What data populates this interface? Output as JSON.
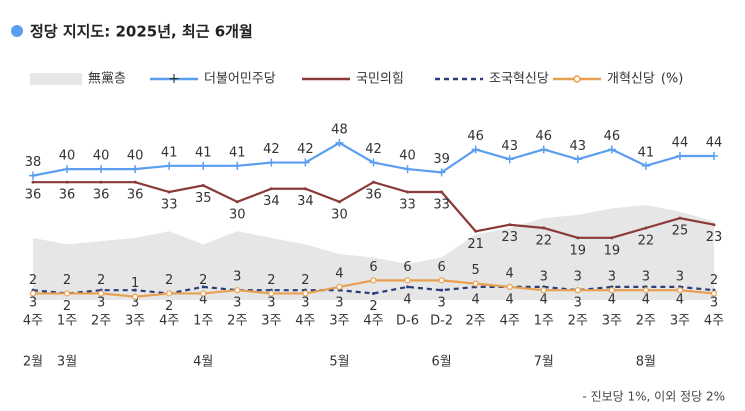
{
  "chart_data": {
    "type": "line",
    "title": "정당 지지도: 2025년, 최근 6개월",
    "unit": "(%)",
    "footnote": "- 진보당 1%, 이외 정당 2%",
    "categories": [
      "4주",
      "1주",
      "2주",
      "3주",
      "4주",
      "1주",
      "2주",
      "3주",
      "4주",
      "3주",
      "4주",
      "D-6",
      "D-2",
      "2주",
      "4주",
      "1주",
      "2주",
      "3주",
      "2주",
      "3주",
      "4주"
    ],
    "months": [
      "2월",
      "3월",
      null,
      null,
      null,
      "4월",
      null,
      null,
      null,
      "5월",
      null,
      null,
      "6월",
      null,
      null,
      "7월",
      null,
      null,
      "8월",
      null,
      null
    ],
    "ylim": [
      0,
      55
    ],
    "area": {
      "name": "無黨층",
      "color": "#e6e6e6",
      "values": [
        19,
        17,
        18,
        19,
        21,
        17,
        21,
        19,
        17,
        14,
        13,
        11,
        13,
        20,
        22,
        25,
        26,
        28,
        29,
        27,
        24
      ]
    },
    "series": [
      {
        "name": "더불어민주당",
        "color": "#5b9ef0",
        "label_side": "above",
        "values": [
          38,
          40,
          40,
          40,
          41,
          41,
          41,
          42,
          42,
          48,
          42,
          40,
          39,
          46,
          43,
          46,
          43,
          46,
          41,
          44,
          44
        ]
      },
      {
        "name": "국민의힘",
        "color": "#8b3a3a",
        "label_side": "below",
        "values": [
          36,
          36,
          36,
          36,
          33,
          35,
          30,
          34,
          34,
          30,
          36,
          33,
          33,
          21,
          23,
          22,
          19,
          19,
          22,
          25,
          23
        ]
      },
      {
        "name": "조국혁신당",
        "color": "#2a3f7a",
        "dashed": true,
        "label_side": "below",
        "values": [
          3,
          2,
          3,
          3,
          2,
          4,
          3,
          3,
          3,
          3,
          2,
          4,
          3,
          4,
          4,
          4,
          3,
          4,
          4,
          4,
          3
        ]
      },
      {
        "name": "개혁신당",
        "color": "#e8a050",
        "label_side": "above",
        "values": [
          2,
          2,
          2,
          1,
          2,
          2,
          3,
          2,
          2,
          4,
          6,
          6,
          6,
          5,
          4,
          3,
          3,
          3,
          3,
          3,
          2
        ]
      }
    ]
  }
}
